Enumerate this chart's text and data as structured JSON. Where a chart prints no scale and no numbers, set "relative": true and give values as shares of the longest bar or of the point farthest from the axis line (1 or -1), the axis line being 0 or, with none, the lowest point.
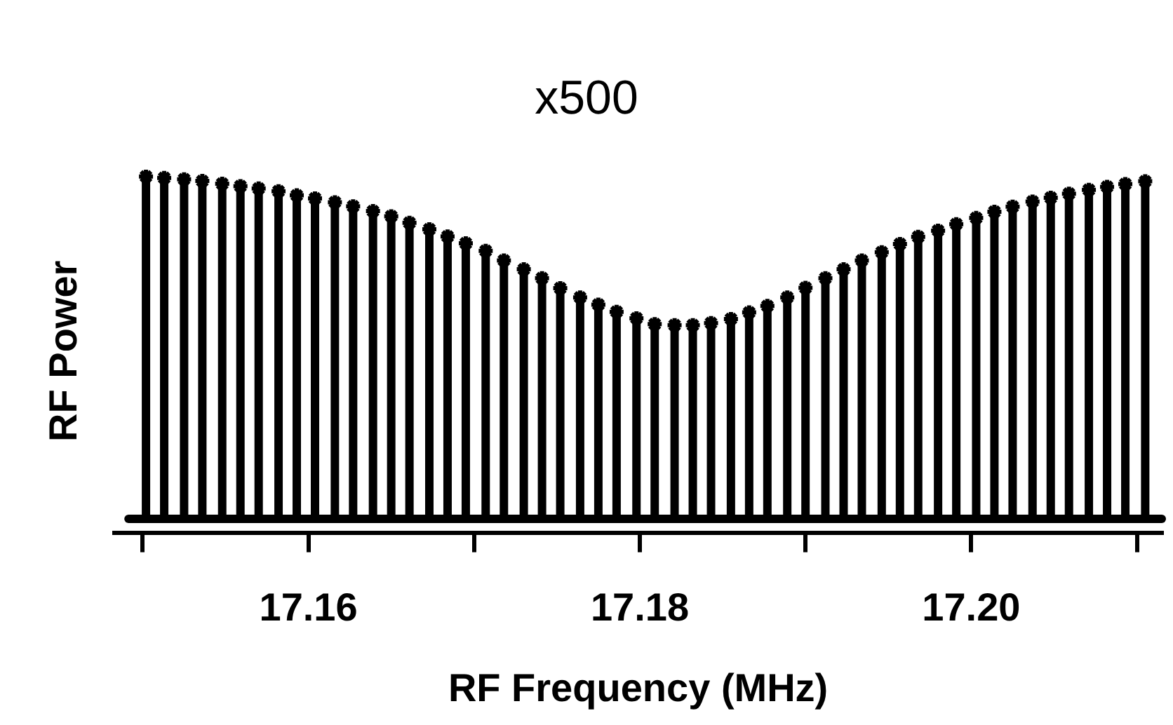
{
  "chart_data": {
    "type": "lollipop",
    "relative": true,
    "marker": "cross",
    "color": "#000000",
    "xlabel": "RF Frequency (MHz)",
    "ylabel": "RF Power",
    "annotations": [
      "x500"
    ],
    "xlim": [
      17.1483,
      17.2115
    ],
    "xticks": [
      {
        "value": 17.15,
        "label": null
      },
      {
        "value": 17.16,
        "label": "17.16"
      },
      {
        "value": 17.17,
        "label": null
      },
      {
        "value": 17.18,
        "label": "17.18"
      },
      {
        "value": 17.19,
        "label": null
      },
      {
        "value": 17.2,
        "label": "17.20"
      },
      {
        "value": 17.21,
        "label": null
      }
    ],
    "tick_labels": "x",
    "x": [
      17.1502,
      17.1513,
      17.1525,
      17.1536,
      17.1548,
      17.1559,
      17.157,
      17.1582,
      17.1593,
      17.1604,
      17.1616,
      17.1627,
      17.1639,
      17.165,
      17.1661,
      17.1673,
      17.1684,
      17.1695,
      17.1707,
      17.1718,
      17.173,
      17.1741,
      17.1752,
      17.1764,
      17.1775,
      17.1786,
      17.1798,
      17.1809,
      17.1821,
      17.1832,
      17.1843,
      17.1855,
      17.1866,
      17.1877,
      17.1889,
      17.19,
      17.1912,
      17.1923,
      17.1934,
      17.1946,
      17.1957,
      17.1968,
      17.198,
      17.1991,
      17.2003,
      17.2014,
      17.2025,
      17.2037,
      17.2048,
      17.2059,
      17.2071,
      17.2082,
      17.2093,
      17.2105
    ],
    "values": [
      1,
      0.996,
      0.992,
      0.987,
      0.979,
      0.972,
      0.965,
      0.957,
      0.945,
      0.936,
      0.925,
      0.913,
      0.899,
      0.884,
      0.865,
      0.846,
      0.825,
      0.805,
      0.783,
      0.755,
      0.729,
      0.703,
      0.674,
      0.647,
      0.626,
      0.605,
      0.586,
      0.569,
      0.566,
      0.566,
      0.572,
      0.584,
      0.603,
      0.622,
      0.647,
      0.675,
      0.703,
      0.729,
      0.755,
      0.779,
      0.803,
      0.824,
      0.842,
      0.861,
      0.879,
      0.897,
      0.912,
      0.927,
      0.938,
      0.95,
      0.961,
      0.97,
      0.978,
      0.986
    ]
  }
}
